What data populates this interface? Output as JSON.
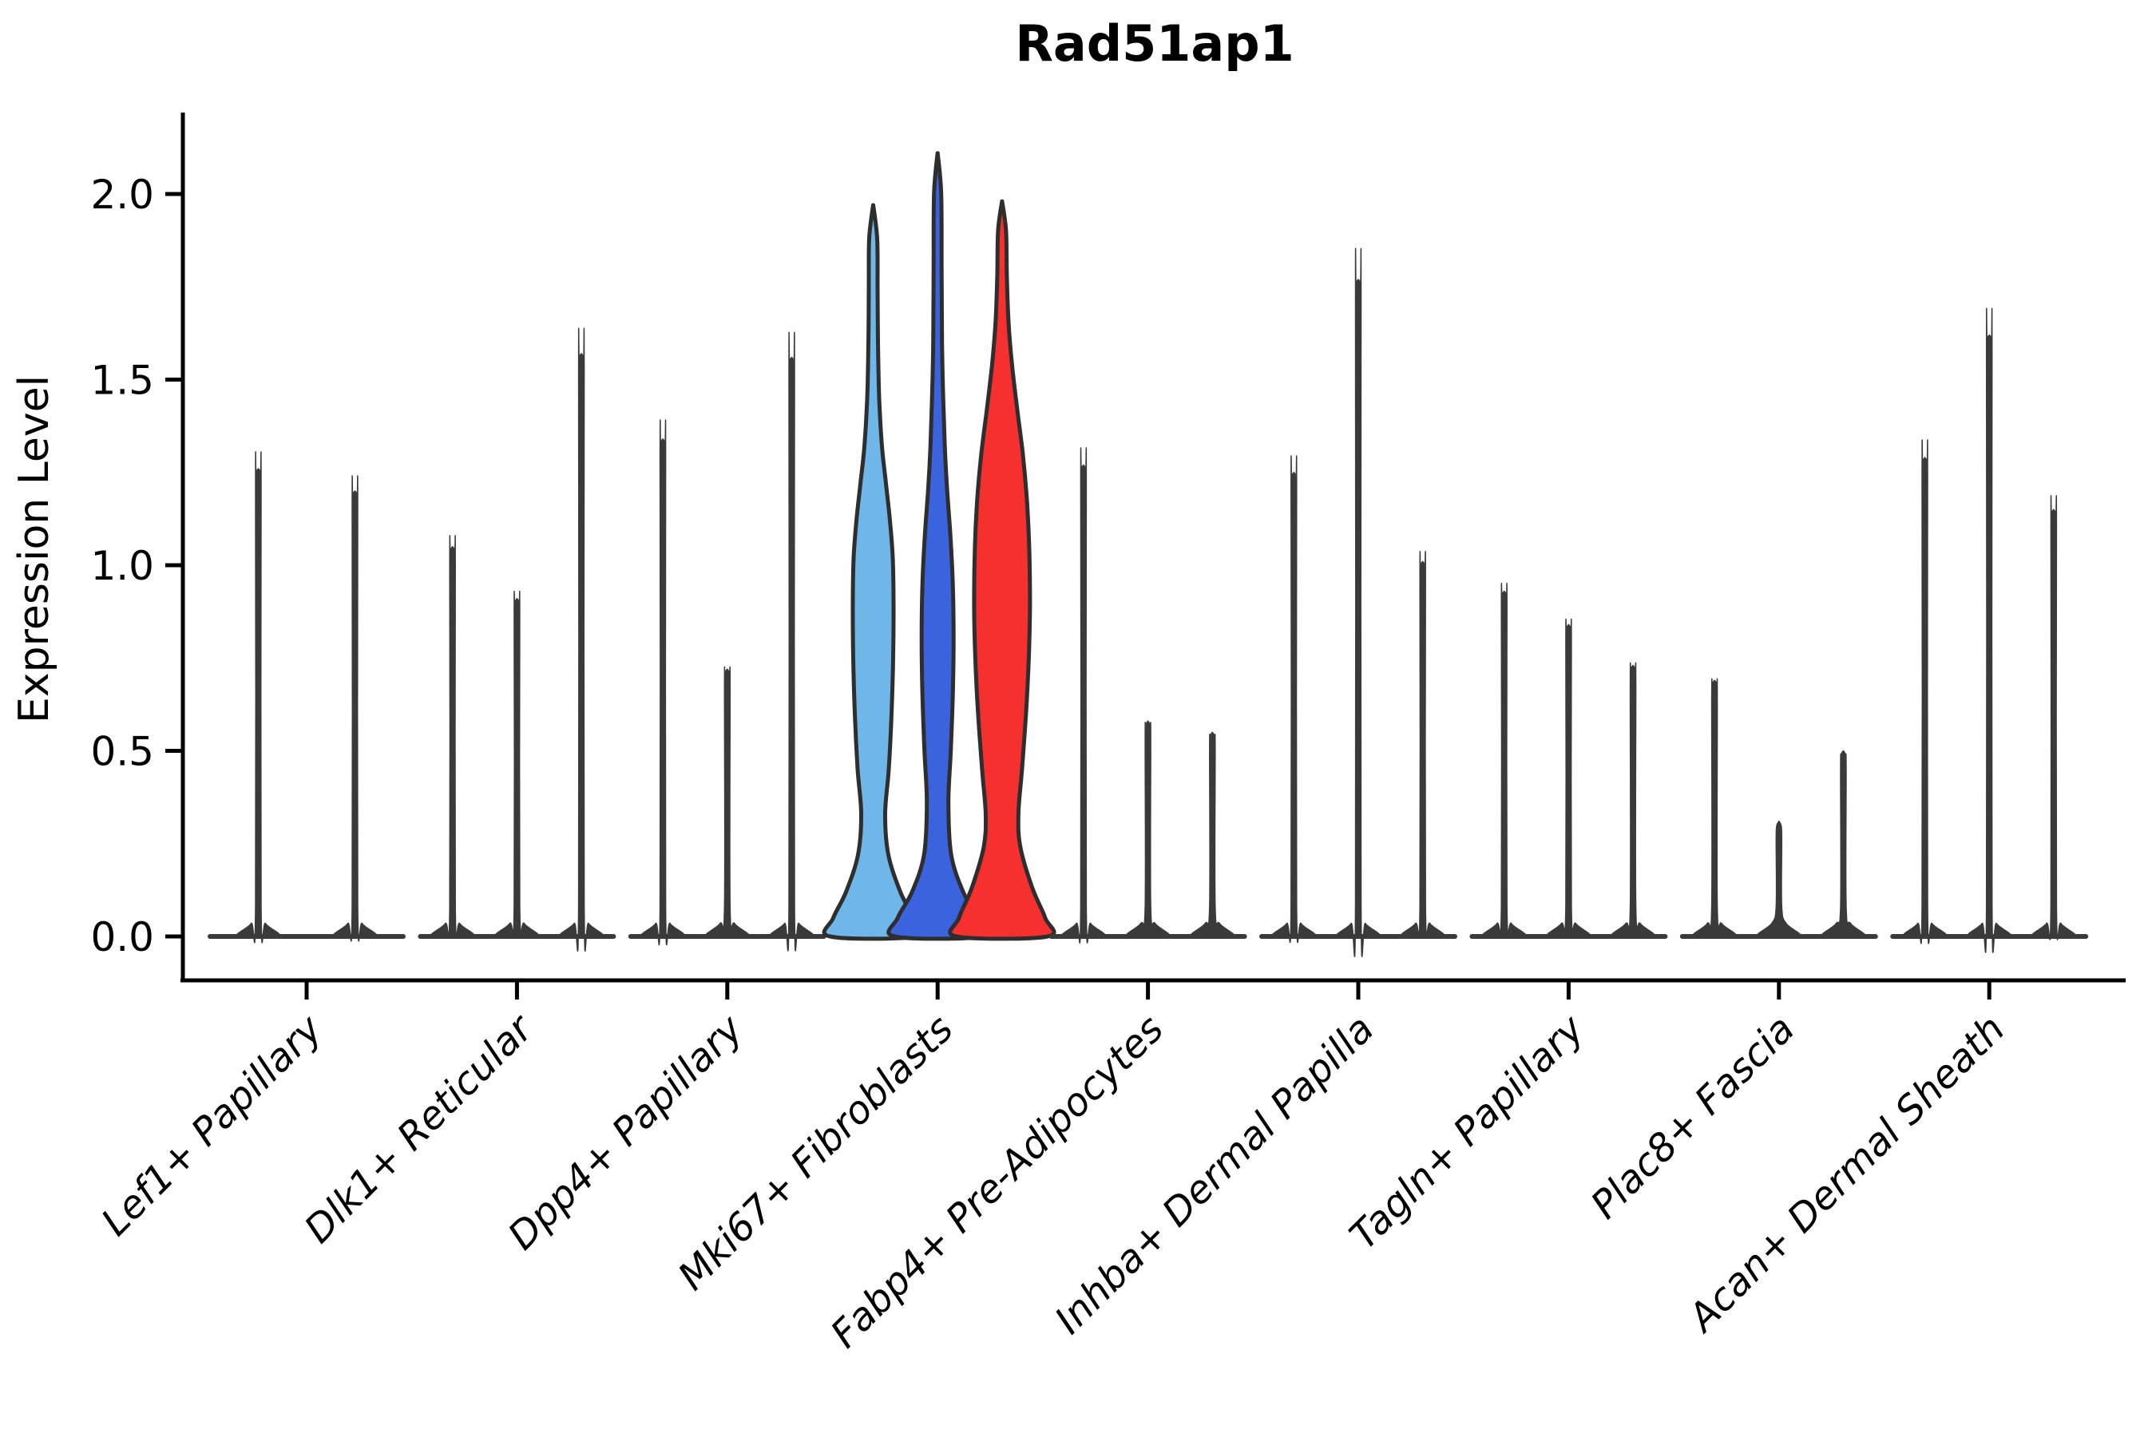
{
  "title": "Rad51ap1",
  "y_axis": {
    "label": "Expression Level",
    "tick_labels": [
      "0.0",
      "0.5",
      "1.0",
      "1.5",
      "2.0"
    ]
  },
  "colors": {
    "background": "#ffffff",
    "outline": "#2e2e2e",
    "spike": "#3a3a3a",
    "axis": "#000000",
    "text": "#000000",
    "highlight_fills": [
      "#6FB7E9",
      "#3C63DE",
      "#F5302E"
    ]
  },
  "chart_data": {
    "type": "violin",
    "title": "Rad51ap1",
    "xlabel": "",
    "ylabel": "Expression Level",
    "ylim": [
      -0.12,
      2.22
    ],
    "yticks": [
      0,
      0.5,
      1,
      1.5,
      2
    ],
    "grid": false,
    "legend": "none",
    "categories": [
      "Lef1+ Papillary",
      "Dlk1+ Reticular",
      "Dpp4+ Papillary",
      "Mki67+ Fibroblasts",
      "Fabp4+ Pre-Adipocytes",
      "Inhba+ Dermal Papilla",
      "Tagln+ Papillary",
      "Plac8+ Fascia",
      "Acan+ Dermal Sheath"
    ],
    "groups": [
      {
        "category": "Lef1+ Papillary",
        "violins": [
          {
            "max": 1.26
          },
          {
            "max": 1.2
          }
        ]
      },
      {
        "category": "Dlk1+ Reticular",
        "violins": [
          {
            "max": 1.05
          },
          {
            "max": 0.91
          },
          {
            "max": 1.57
          }
        ]
      },
      {
        "category": "Dpp4+ Papillary",
        "violins": [
          {
            "max": 1.34
          },
          {
            "max": 0.72
          },
          {
            "max": 1.56
          }
        ]
      },
      {
        "category": "Mki67+ Fibroblasts",
        "violins": [
          {
            "max": 1.97,
            "fill": "#6FB7E9",
            "profile": [
              [
                0,
                54
              ],
              [
                0.05,
                50
              ],
              [
                0.12,
                34
              ],
              [
                0.22,
                19
              ],
              [
                0.33,
                15
              ],
              [
                0.45,
                19.5
              ],
              [
                0.6,
                23
              ],
              [
                0.75,
                25
              ],
              [
                0.9,
                25.5
              ],
              [
                1.02,
                24.5
              ],
              [
                1.12,
                21
              ],
              [
                1.22,
                16
              ],
              [
                1.32,
                11
              ],
              [
                1.45,
                7.5
              ],
              [
                1.6,
                6
              ],
              [
                1.75,
                5.5
              ],
              [
                1.88,
                5
              ],
              [
                1.97,
                0.1
              ]
            ]
          },
          {
            "max": 2.11,
            "fill": "#3C63DE",
            "profile": [
              [
                0,
                54
              ],
              [
                0.05,
                50
              ],
              [
                0.12,
                32
              ],
              [
                0.22,
                17
              ],
              [
                0.36,
                13.5
              ],
              [
                0.5,
                16.5
              ],
              [
                0.65,
                19
              ],
              [
                0.8,
                20
              ],
              [
                0.95,
                19
              ],
              [
                1.08,
                16
              ],
              [
                1.2,
                12
              ],
              [
                1.32,
                9
              ],
              [
                1.45,
                7
              ],
              [
                1.6,
                5.5
              ],
              [
                1.8,
                5
              ],
              [
                2.0,
                4.5
              ],
              [
                2.11,
                0.1
              ]
            ]
          },
          {
            "max": 1.98,
            "fill": "#F5302E",
            "profile": [
              [
                0,
                57
              ],
              [
                0.05,
                54
              ],
              [
                0.13,
                38
              ],
              [
                0.24,
                23
              ],
              [
                0.33,
                20.5
              ],
              [
                0.45,
                25
              ],
              [
                0.6,
                30
              ],
              [
                0.75,
                33.5
              ],
              [
                0.9,
                35
              ],
              [
                1.05,
                34
              ],
              [
                1.18,
                31
              ],
              [
                1.3,
                26
              ],
              [
                1.42,
                19
              ],
              [
                1.54,
                12.5
              ],
              [
                1.66,
                8
              ],
              [
                1.78,
                6
              ],
              [
                1.9,
                5
              ],
              [
                1.98,
                0.1
              ]
            ]
          }
        ]
      },
      {
        "category": "Fabp4+ Pre-Adipocytes",
        "violins": [
          {
            "max": 1.27
          },
          {
            "max": 0.58
          },
          {
            "max": 0.55
          }
        ]
      },
      {
        "category": "Inhba+ Dermal Papilla",
        "violins": [
          {
            "max": 1.25
          },
          {
            "max": 1.77
          },
          {
            "max": 1.01
          }
        ]
      },
      {
        "category": "Tagln+ Papillary",
        "violins": [
          {
            "max": 0.93
          },
          {
            "max": 0.84
          },
          {
            "max": 0.73
          }
        ]
      },
      {
        "category": "Plac8+ Fascia",
        "violins": [
          {
            "max": 0.69
          },
          {
            "max": 0.31
          },
          {
            "max": 0.5
          }
        ]
      },
      {
        "category": "Acan+ Dermal Sheath",
        "violins": [
          {
            "max": 1.29
          },
          {
            "max": 1.62
          },
          {
            "max": 1.15
          }
        ]
      }
    ]
  }
}
